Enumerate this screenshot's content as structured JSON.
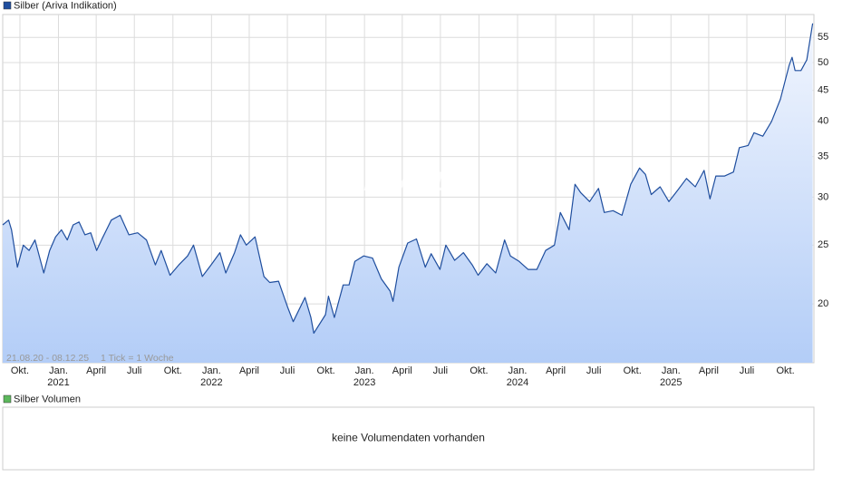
{
  "chart_data": {
    "type": "line",
    "title": "Silber (Ariva Indikation)",
    "date_range": "21.08.20 - 08.12.25",
    "tick_note": "1 Tick = 1 Woche",
    "watermark": "ARIVA.DE",
    "log_scale": true,
    "grid": true,
    "color": "#1f4e9e",
    "x": [
      "2020-08-21",
      "2020-09-04",
      "2020-09-11",
      "2020-09-25",
      "2020-10-09",
      "2020-10-23",
      "2020-11-06",
      "2020-11-27",
      "2020-12-11",
      "2020-12-25",
      "2021-01-08",
      "2021-01-22",
      "2021-02-05",
      "2021-02-19",
      "2021-03-05",
      "2021-03-19",
      "2021-04-02",
      "2021-04-16",
      "2021-05-07",
      "2021-05-28",
      "2021-06-18",
      "2021-07-09",
      "2021-07-30",
      "2021-08-20",
      "2021-09-03",
      "2021-09-24",
      "2021-10-15",
      "2021-11-05",
      "2021-11-19",
      "2021-12-10",
      "2021-12-31",
      "2022-01-21",
      "2022-02-04",
      "2022-02-25",
      "2022-03-11",
      "2022-03-25",
      "2022-04-15",
      "2022-05-06",
      "2022-05-20",
      "2022-06-10",
      "2022-07-01",
      "2022-07-15",
      "2022-08-12",
      "2022-08-26",
      "2022-09-02",
      "2022-09-30",
      "2022-10-07",
      "2022-10-21",
      "2022-11-11",
      "2022-11-25",
      "2022-12-09",
      "2022-12-30",
      "2023-01-20",
      "2023-02-10",
      "2023-03-03",
      "2023-03-10",
      "2023-03-24",
      "2023-04-14",
      "2023-05-05",
      "2023-05-26",
      "2023-06-09",
      "2023-06-30",
      "2023-07-14",
      "2023-08-04",
      "2023-08-25",
      "2023-09-15",
      "2023-09-29",
      "2023-10-20",
      "2023-11-10",
      "2023-12-01",
      "2023-12-15",
      "2024-01-05",
      "2024-01-26",
      "2024-02-16",
      "2024-03-08",
      "2024-03-29",
      "2024-04-12",
      "2024-05-03",
      "2024-05-17",
      "2024-05-31",
      "2024-06-21",
      "2024-07-12",
      "2024-07-26",
      "2024-08-16",
      "2024-09-06",
      "2024-09-27",
      "2024-10-18",
      "2024-11-01",
      "2024-11-15",
      "2024-12-06",
      "2024-12-27",
      "2025-01-17",
      "2025-02-07",
      "2025-02-28",
      "2025-03-21",
      "2025-04-04",
      "2025-04-18",
      "2025-05-09",
      "2025-05-30",
      "2025-06-13",
      "2025-07-04",
      "2025-07-18",
      "2025-08-08",
      "2025-08-29",
      "2025-09-19",
      "2025-10-10",
      "2025-10-17",
      "2025-10-24",
      "2025-11-07",
      "2025-11-21",
      "2025-12-05"
    ],
    "series": [
      {
        "name": "Silber",
        "color": "#1f4e9e",
        "values": [
          27,
          27.5,
          26.5,
          23,
          25,
          24.5,
          25.5,
          22.5,
          24.5,
          25.8,
          26.5,
          25.5,
          27,
          27.3,
          26,
          26.2,
          24.5,
          25.7,
          27.5,
          28,
          26,
          26.2,
          25.5,
          23.2,
          24.5,
          22.3,
          23.2,
          24,
          25,
          22.2,
          23.2,
          24.3,
          22.5,
          24.3,
          26,
          25,
          25.8,
          22.2,
          21.7,
          21.8,
          19.8,
          18.7,
          20.5,
          19,
          17.9,
          19.2,
          20.6,
          19,
          21.5,
          21.5,
          23.5,
          24,
          23.8,
          22,
          21,
          20.2,
          23,
          25.2,
          25.6,
          23,
          24.2,
          22.8,
          25,
          23.6,
          24.3,
          23.2,
          22.3,
          23.3,
          22.5,
          25.5,
          24,
          23.5,
          22.8,
          22.8,
          24.5,
          25,
          28.3,
          26.5,
          31.5,
          30.5,
          29.5,
          31,
          28.3,
          28.5,
          28,
          31.5,
          33.5,
          32.7,
          30.3,
          31.2,
          29.5,
          30.8,
          32.2,
          31.2,
          33.2,
          29.8,
          32.5,
          32.5,
          33,
          36.2,
          36.5,
          38.3,
          37.8,
          40,
          43.5,
          49.5,
          51,
          48.5,
          48.5,
          50.5,
          58
        ]
      }
    ],
    "xlim": [
      "2020-08-21",
      "2025-12-08"
    ],
    "xticks": [
      {
        "value": "2020-10-01",
        "label": "Okt."
      },
      {
        "value": "2021-01-01",
        "label": "Jan."
      },
      {
        "value": "2021-04-01",
        "label": "April"
      },
      {
        "value": "2021-07-01",
        "label": "Juli"
      },
      {
        "value": "2021-10-01",
        "label": "Okt."
      },
      {
        "value": "2022-01-01",
        "label": "Jan."
      },
      {
        "value": "2022-04-01",
        "label": "April"
      },
      {
        "value": "2022-07-01",
        "label": "Juli"
      },
      {
        "value": "2022-10-01",
        "label": "Okt."
      },
      {
        "value": "2023-01-01",
        "label": "Jan."
      },
      {
        "value": "2023-04-01",
        "label": "April"
      },
      {
        "value": "2023-07-01",
        "label": "Juli"
      },
      {
        "value": "2023-10-01",
        "label": "Okt."
      },
      {
        "value": "2024-01-01",
        "label": "Jan."
      },
      {
        "value": "2024-04-01",
        "label": "April"
      },
      {
        "value": "2024-07-01",
        "label": "Juli"
      },
      {
        "value": "2024-10-01",
        "label": "Okt."
      },
      {
        "value": "2025-01-01",
        "label": "Jan."
      },
      {
        "value": "2025-04-01",
        "label": "April"
      },
      {
        "value": "2025-07-01",
        "label": "Juli"
      },
      {
        "value": "2025-10-01",
        "label": "Okt."
      }
    ],
    "year_labels": [
      {
        "value": "2021-01-01",
        "label": "2021"
      },
      {
        "value": "2022-01-01",
        "label": "2022"
      },
      {
        "value": "2023-01-01",
        "label": "2023"
      },
      {
        "value": "2024-01-01",
        "label": "2024"
      },
      {
        "value": "2025-01-01",
        "label": "2025"
      }
    ],
    "ylim": [
      16,
      60
    ],
    "yticks": [
      20,
      25,
      30,
      35,
      40,
      45,
      50,
      55
    ],
    "volume_title": "Silber Volumen",
    "volume_message": "keine Volumendaten vorhanden"
  }
}
